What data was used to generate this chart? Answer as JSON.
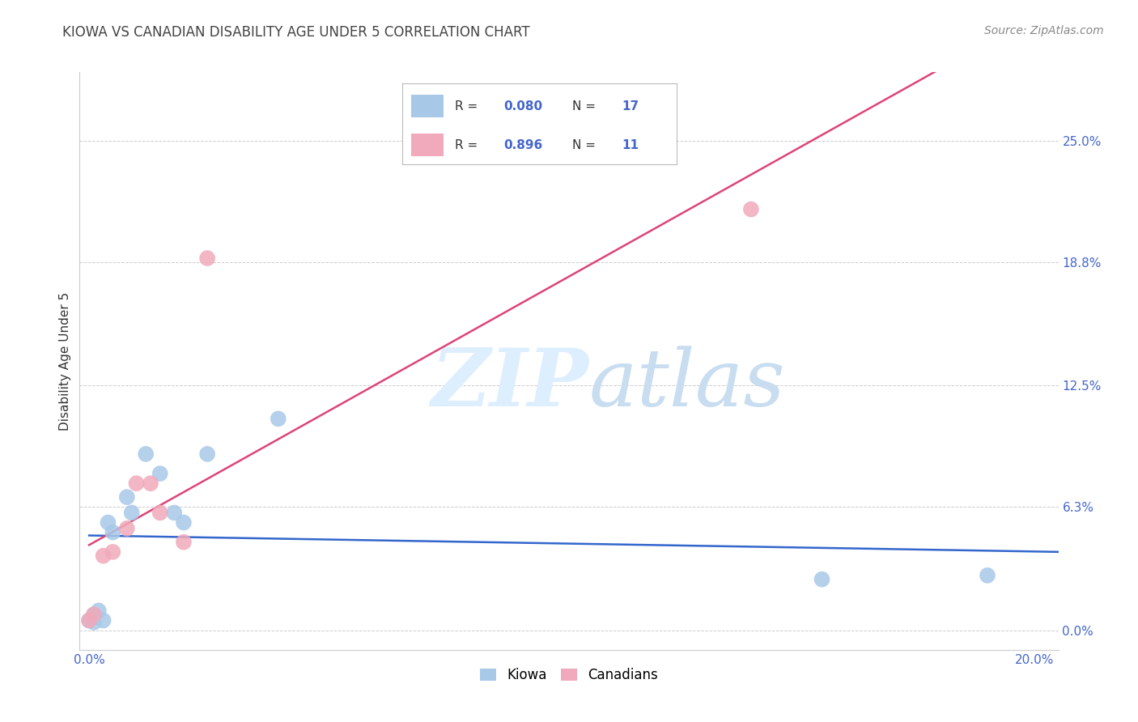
{
  "title": "KIOWA VS CANADIAN DISABILITY AGE UNDER 5 CORRELATION CHART",
  "source": "Source: ZipAtlas.com",
  "ylabel": "Disability Age Under 5",
  "xlim": [
    -0.002,
    0.205
  ],
  "ylim": [
    -0.01,
    0.285
  ],
  "yticks": [
    0.0,
    0.063,
    0.125,
    0.188,
    0.25
  ],
  "ytick_labels": [
    "0.0%",
    "6.3%",
    "12.5%",
    "18.8%",
    "25.0%"
  ],
  "xticks": [
    0.0,
    0.05,
    0.1,
    0.15,
    0.2
  ],
  "xtick_labels": [
    "0.0%",
    "",
    "",
    "",
    "20.0%"
  ],
  "kiowa_r": "0.080",
  "kiowa_n": "17",
  "canadian_r": "0.896",
  "canadian_n": "11",
  "kiowa_color": "#a8c8e8",
  "canadian_color": "#f0aabb",
  "kiowa_line_color": "#3366cc",
  "canadian_line_color": "#dd4477",
  "tick_color": "#4466cc",
  "background_color": "#ffffff",
  "grid_color": "#cccccc",
  "watermark_zip_color": "#ddeeff",
  "watermark_atlas_color": "#c8ddf0",
  "kiowa_x": [
    0.0,
    0.001,
    0.001,
    0.002,
    0.003,
    0.004,
    0.005,
    0.008,
    0.009,
    0.012,
    0.015,
    0.018,
    0.02,
    0.025,
    0.04,
    0.155,
    0.19
  ],
  "kiowa_y": [
    0.005,
    0.004,
    0.008,
    0.01,
    0.005,
    0.055,
    0.05,
    0.068,
    0.06,
    0.09,
    0.08,
    0.06,
    0.055,
    0.09,
    0.108,
    0.026,
    0.028
  ],
  "canadian_x": [
    0.0,
    0.001,
    0.003,
    0.005,
    0.008,
    0.01,
    0.013,
    0.015,
    0.02,
    0.025,
    0.14
  ],
  "canadian_y": [
    0.005,
    0.008,
    0.038,
    0.04,
    0.052,
    0.075,
    0.075,
    0.06,
    0.045,
    0.19,
    0.215
  ],
  "title_fontsize": 12,
  "axis_label_fontsize": 11,
  "tick_fontsize": 11,
  "legend_fontsize": 12,
  "source_fontsize": 10
}
